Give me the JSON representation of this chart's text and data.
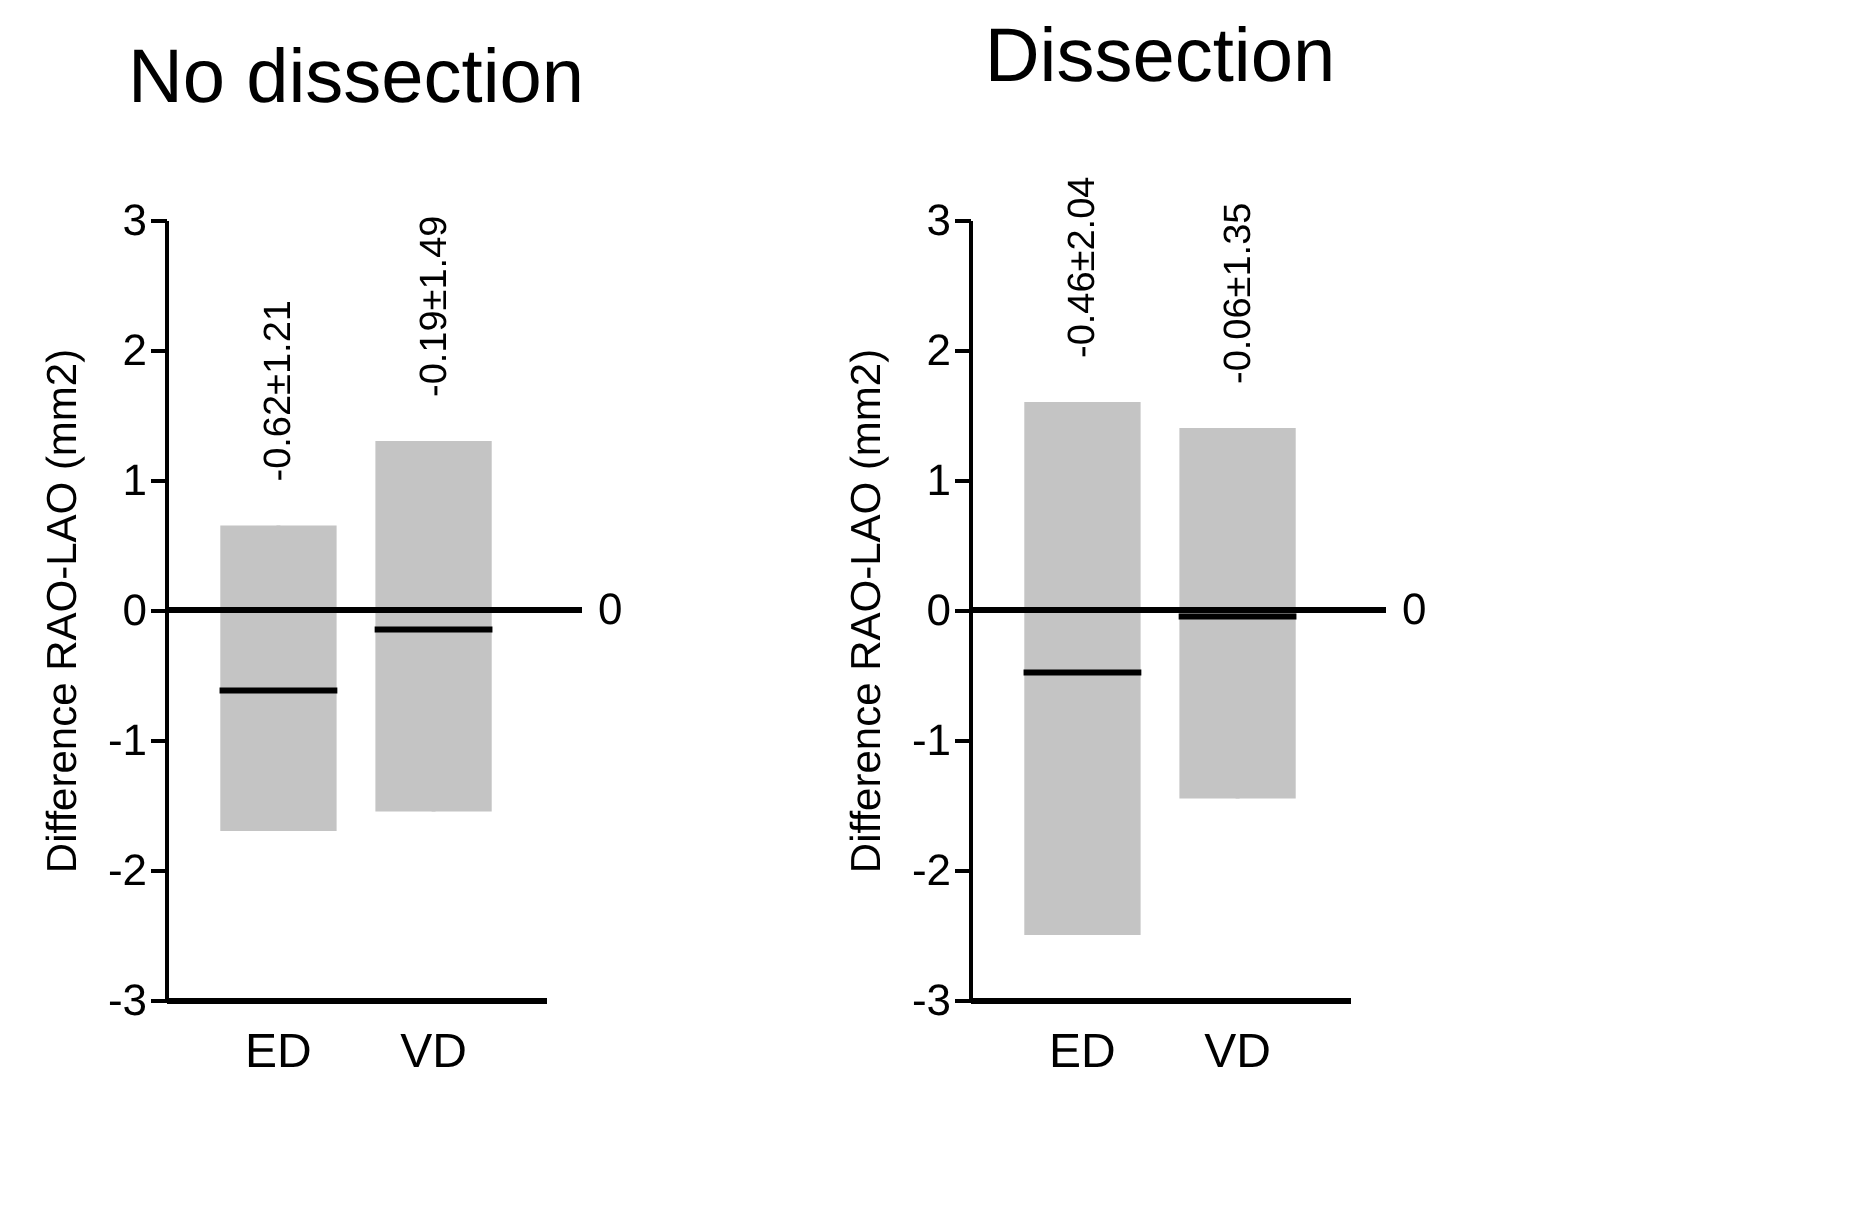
{
  "chart_data": [
    {
      "type": "box",
      "title": "No dissection",
      "ylabel": "Difference RAO-LAO (mm2)",
      "categories": [
        "ED",
        "VD"
      ],
      "color": "#c4c4c4",
      "boxes": [
        {
          "low": -1.7,
          "q1": -1.7,
          "median": -0.62,
          "q3": 0.65,
          "high": 0.65
        },
        {
          "low": -1.55,
          "q1": -1.55,
          "median": -0.15,
          "q3": 1.3,
          "high": 1.3
        }
      ],
      "ylim": [
        -3,
        3
      ],
      "yticks": [
        -3,
        -2,
        -1,
        0,
        1,
        2,
        3
      ],
      "grid": false,
      "ref_lines": [
        {
          "axis": "y",
          "value": 0,
          "label": "0"
        }
      ],
      "annotations": [
        "-0.62±1.21",
        "-0.19±1.49"
      ]
    },
    {
      "type": "box",
      "title": "Dissection",
      "ylabel": "Difference RAO-LAO (mm2)",
      "categories": [
        "ED",
        "VD"
      ],
      "color": "#c4c4c4",
      "boxes": [
        {
          "low": -2.5,
          "q1": -2.5,
          "median": -0.48,
          "q3": 1.6,
          "high": 1.6
        },
        {
          "low": -1.45,
          "q1": -1.45,
          "median": -0.05,
          "q3": 1.4,
          "high": 1.4
        }
      ],
      "ylim": [
        -3,
        3
      ],
      "yticks": [
        -3,
        -2,
        -1,
        0,
        1,
        2,
        3
      ],
      "grid": false,
      "ref_lines": [
        {
          "axis": "y",
          "value": 0,
          "label": "0"
        }
      ],
      "annotations": [
        "-0.46±2.04",
        "-0.06±1.35"
      ]
    }
  ]
}
